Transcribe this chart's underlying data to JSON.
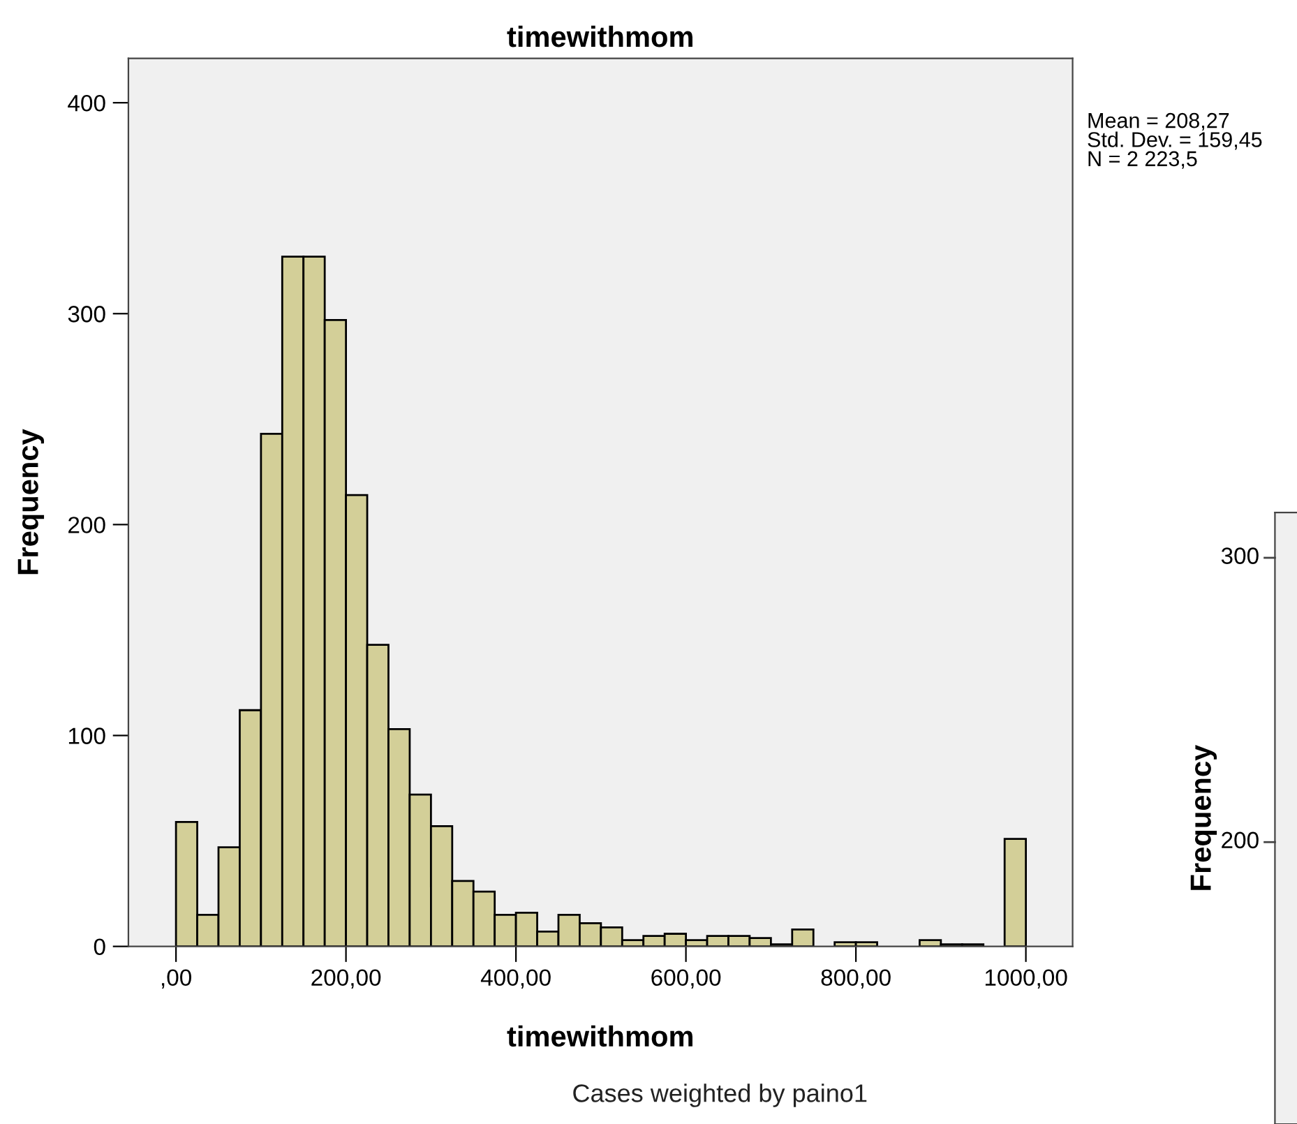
{
  "chart_data": [
    {
      "type": "histogram",
      "title": "timewithmom",
      "xlabel": "timewithmom",
      "ylabel": "Frequency",
      "bins": [
        0,
        25,
        50,
        75,
        100,
        125,
        150,
        175,
        200,
        225,
        250,
        275,
        300,
        325,
        350,
        375,
        400,
        425,
        450,
        475,
        500,
        525,
        550,
        575,
        600,
        625,
        650,
        675,
        700,
        725,
        750,
        775,
        800,
        825,
        850,
        875,
        900,
        925,
        950,
        975,
        1000
      ],
      "values": [
        59,
        15,
        47,
        112,
        243,
        327,
        327,
        297,
        214,
        143,
        103,
        72,
        57,
        31,
        26,
        15,
        16,
        7,
        15,
        11,
        9,
        3,
        5,
        6,
        3,
        5,
        5,
        4,
        1,
        8,
        0,
        2,
        2,
        0,
        0,
        3,
        1,
        1,
        0,
        51
      ],
      "color": "#d3cf98",
      "xlim": [
        -56,
        1055
      ],
      "ylim": [
        0,
        421
      ],
      "xticks": [
        {
          "value": 0,
          "label": ",00"
        },
        {
          "value": 200,
          "label": "200,00"
        },
        {
          "value": 400,
          "label": "400,00"
        },
        {
          "value": 600,
          "label": "600,00"
        },
        {
          "value": 800,
          "label": "800,00"
        },
        {
          "value": 1000,
          "label": "1000,00"
        }
      ],
      "yticks": [
        0,
        100,
        200,
        300,
        400
      ],
      "grid": false,
      "legend": false,
      "annotations": [
        "Mean = 208,27\nStd. Dev. = 159,45\nN = 2 223,5",
        "Cases weighted by paino1"
      ]
    },
    {
      "type": "other",
      "ylabel": "Frequency",
      "annotations": [
        "300",
        "200"
      ]
    }
  ]
}
